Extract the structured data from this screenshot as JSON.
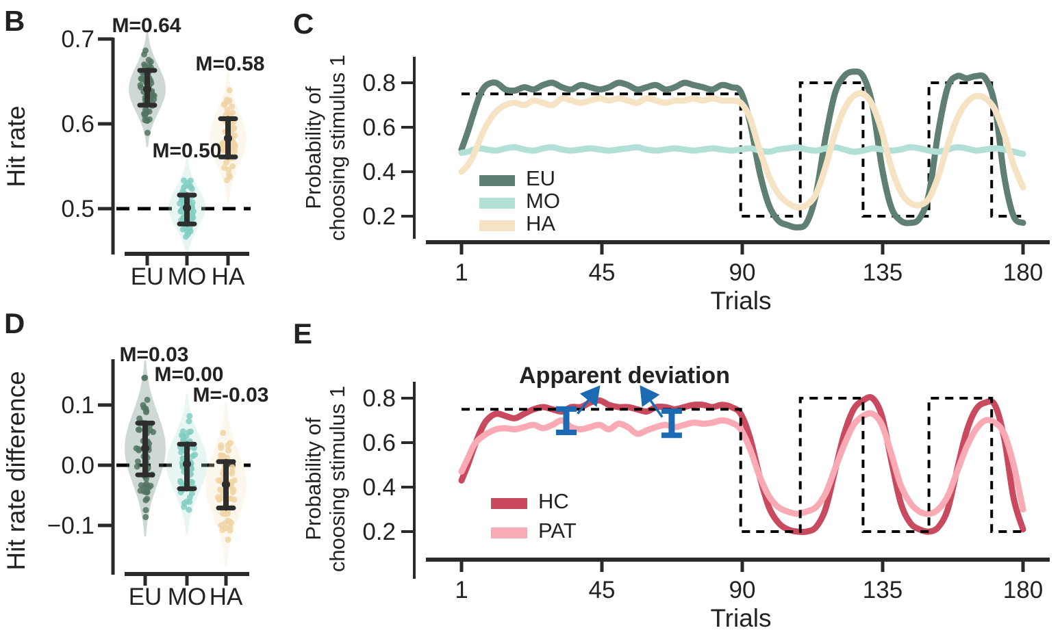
{
  "figure": {
    "background": "#ffffff",
    "accent_blue": "#1b6ab3",
    "errorbar_color": "#2e2e2e"
  },
  "chart_data": [
    {
      "panel_label": "B",
      "type": "violin",
      "ylabel": "Hit rate",
      "ytick_labels": [
        "0.7",
        "0.6",
        "0.5"
      ],
      "yticks": [
        0.7,
        0.6,
        0.5
      ],
      "ylim": [
        0.44,
        0.705
      ],
      "dashed_line_y": 0.5,
      "categories": [
        "EU",
        "MO",
        "HA"
      ],
      "groups": [
        {
          "name": "EU",
          "mean": 0.641,
          "mean_label": "M=0.64",
          "ci": [
            0.622,
            0.663
          ],
          "sd": 0.021,
          "range": [
            0.585,
            0.69
          ],
          "n": 60,
          "color": "#5e7f72",
          "dot_color": "#527663"
        },
        {
          "name": "MO",
          "mean": 0.501,
          "mean_label": "M=0.50",
          "ci": [
            0.482,
            0.516
          ],
          "sd": 0.018,
          "range": [
            0.452,
            0.548
          ],
          "n": 60,
          "color": "#b2e0d7",
          "dot_color": "#82cec1"
        },
        {
          "name": "HA",
          "mean": 0.583,
          "mean_label": "M=0.58",
          "ci": [
            0.561,
            0.606
          ],
          "sd": 0.024,
          "range": [
            0.515,
            0.64
          ],
          "n": 60,
          "color": "#f6e3c4",
          "dot_color": "#f0d3a4"
        }
      ]
    },
    {
      "panel_label": "C",
      "type": "line",
      "xlabel": "Trials",
      "ylabel_line1": "Probability of",
      "ylabel_line2": "choosing stimulus 1",
      "xtick_labels": [
        "1",
        "45",
        "90",
        "135",
        "180"
      ],
      "xticks": [
        1,
        45,
        90,
        135,
        180
      ],
      "ytick_labels": [
        "0.8",
        "0.6",
        "0.4",
        "0.2"
      ],
      "yticks": [
        0.8,
        0.6,
        0.4,
        0.2
      ],
      "xlim": [
        1,
        180
      ],
      "ylim": [
        0.1,
        0.92
      ],
      "schedule": {
        "name": "true-reward-probability",
        "style": "dashed",
        "color": "#000000",
        "points": [
          [
            1,
            0.75
          ],
          [
            90,
            0.75
          ],
          [
            90,
            0.2
          ],
          [
            109,
            0.2
          ],
          [
            109,
            0.8
          ],
          [
            129,
            0.8
          ],
          [
            129,
            0.2
          ],
          [
            150,
            0.2
          ],
          [
            150,
            0.8
          ],
          [
            170,
            0.8
          ],
          [
            170,
            0.2
          ],
          [
            180,
            0.2
          ]
        ]
      },
      "series": [
        {
          "name": "EU",
          "color": "#5e7f72",
          "x": [
            1,
            3,
            5,
            7,
            9,
            12,
            15,
            18,
            21,
            24,
            27,
            30,
            33,
            36,
            39,
            42,
            45,
            48,
            51,
            54,
            57,
            60,
            63,
            66,
            69,
            72,
            75,
            78,
            81,
            84,
            87,
            90,
            93,
            96,
            99,
            102,
            105,
            108,
            111,
            114,
            117,
            120,
            123,
            126,
            129,
            132,
            135,
            138,
            141,
            144,
            147,
            150,
            153,
            156,
            159,
            162,
            165,
            168,
            171,
            174,
            177,
            180
          ],
          "y": [
            0.5,
            0.58,
            0.67,
            0.75,
            0.79,
            0.8,
            0.77,
            0.765,
            0.78,
            0.77,
            0.79,
            0.8,
            0.78,
            0.77,
            0.79,
            0.78,
            0.77,
            0.78,
            0.8,
            0.79,
            0.77,
            0.78,
            0.79,
            0.77,
            0.78,
            0.8,
            0.79,
            0.78,
            0.77,
            0.79,
            0.78,
            0.76,
            0.62,
            0.4,
            0.25,
            0.18,
            0.16,
            0.15,
            0.17,
            0.3,
            0.55,
            0.75,
            0.83,
            0.85,
            0.83,
            0.7,
            0.42,
            0.24,
            0.18,
            0.17,
            0.19,
            0.3,
            0.58,
            0.78,
            0.83,
            0.82,
            0.83,
            0.82,
            0.7,
            0.38,
            0.2,
            0.17
          ]
        },
        {
          "name": "MO",
          "color": "#b2e0d7",
          "x": [
            1,
            3,
            5,
            7,
            9,
            12,
            15,
            18,
            21,
            24,
            27,
            30,
            33,
            36,
            39,
            42,
            45,
            48,
            51,
            54,
            57,
            60,
            63,
            66,
            69,
            72,
            75,
            78,
            81,
            84,
            87,
            90,
            93,
            96,
            99,
            102,
            105,
            108,
            111,
            114,
            117,
            120,
            123,
            126,
            129,
            132,
            135,
            138,
            141,
            144,
            147,
            150,
            153,
            156,
            159,
            162,
            165,
            168,
            171,
            174,
            177,
            180
          ],
          "y": [
            0.485,
            0.49,
            0.5,
            0.505,
            0.5,
            0.495,
            0.505,
            0.51,
            0.5,
            0.495,
            0.505,
            0.51,
            0.5,
            0.495,
            0.5,
            0.505,
            0.5,
            0.495,
            0.5,
            0.505,
            0.51,
            0.5,
            0.495,
            0.5,
            0.505,
            0.5,
            0.495,
            0.5,
            0.505,
            0.5,
            0.495,
            0.5,
            0.505,
            0.495,
            0.49,
            0.5,
            0.505,
            0.51,
            0.5,
            0.495,
            0.505,
            0.51,
            0.5,
            0.49,
            0.495,
            0.505,
            0.5,
            0.495,
            0.5,
            0.51,
            0.505,
            0.495,
            0.49,
            0.5,
            0.51,
            0.505,
            0.495,
            0.5,
            0.505,
            0.5,
            0.49,
            0.48
          ]
        },
        {
          "name": "HA",
          "color": "#f6e3c4",
          "x": [
            1,
            3,
            5,
            7,
            9,
            12,
            15,
            18,
            21,
            24,
            27,
            30,
            33,
            36,
            39,
            42,
            45,
            48,
            51,
            54,
            57,
            60,
            63,
            66,
            69,
            72,
            75,
            78,
            81,
            84,
            87,
            90,
            93,
            96,
            99,
            102,
            105,
            108,
            111,
            114,
            117,
            120,
            123,
            126,
            129,
            132,
            135,
            138,
            141,
            144,
            147,
            150,
            153,
            156,
            159,
            162,
            165,
            168,
            171,
            174,
            177,
            180
          ],
          "y": [
            0.4,
            0.43,
            0.48,
            0.55,
            0.61,
            0.67,
            0.7,
            0.71,
            0.7,
            0.72,
            0.71,
            0.7,
            0.73,
            0.72,
            0.71,
            0.72,
            0.73,
            0.72,
            0.73,
            0.72,
            0.71,
            0.73,
            0.72,
            0.71,
            0.72,
            0.72,
            0.73,
            0.72,
            0.73,
            0.72,
            0.72,
            0.71,
            0.64,
            0.5,
            0.38,
            0.3,
            0.26,
            0.24,
            0.25,
            0.3,
            0.42,
            0.57,
            0.68,
            0.74,
            0.75,
            0.7,
            0.58,
            0.42,
            0.31,
            0.26,
            0.25,
            0.28,
            0.38,
            0.52,
            0.64,
            0.71,
            0.74,
            0.73,
            0.68,
            0.57,
            0.43,
            0.33
          ]
        }
      ]
    },
    {
      "panel_label": "D",
      "type": "violin",
      "ylabel": "Hit rate difference",
      "ytick_labels": [
        "0.1",
        "0.0",
        "−0.1"
      ],
      "yticks": [
        0.1,
        0.0,
        -0.1
      ],
      "ylim": [
        -0.17,
        0.175
      ],
      "dashed_line_y": 0.0,
      "categories": [
        "EU",
        "MO",
        "HA"
      ],
      "groups": [
        {
          "name": "EU",
          "mean": 0.028,
          "mean_label": "M=0.03",
          "ci": [
            -0.016,
            0.07
          ],
          "sd": 0.045,
          "range": [
            -0.105,
            0.148
          ],
          "n": 60,
          "color": "#5e7f72",
          "dot_color": "#527663"
        },
        {
          "name": "MO",
          "mean": 0.002,
          "mean_label": "M=0.00",
          "ci": [
            -0.039,
            0.035
          ],
          "sd": 0.036,
          "range": [
            -0.088,
            0.092
          ],
          "n": 60,
          "color": "#b2e0d7",
          "dot_color": "#82cec1"
        },
        {
          "name": "HA",
          "mean": -0.032,
          "mean_label": "M=-0.03",
          "ci": [
            -0.071,
            0.006
          ],
          "sd": 0.042,
          "range": [
            -0.148,
            0.092
          ],
          "n": 60,
          "color": "#f6e3c4",
          "dot_color": "#f0d3a4"
        }
      ]
    },
    {
      "panel_label": "E",
      "type": "line",
      "xlabel": "Trials",
      "ylabel_line1": "Probability of",
      "ylabel_line2": "choosing stimulus 1",
      "xtick_labels": [
        "1",
        "45",
        "90",
        "135",
        "180"
      ],
      "xticks": [
        1,
        45,
        90,
        135,
        180
      ],
      "ytick_labels": [
        "0.8",
        "0.6",
        "0.4",
        "0.2"
      ],
      "yticks": [
        0.8,
        0.6,
        0.4,
        0.2
      ],
      "xlim": [
        1,
        180
      ],
      "ylim": [
        0.1,
        0.92
      ],
      "schedule": {
        "name": "true-reward-probability",
        "style": "dashed",
        "color": "#000000",
        "points": [
          [
            1,
            0.75
          ],
          [
            90,
            0.75
          ],
          [
            90,
            0.2
          ],
          [
            109,
            0.2
          ],
          [
            109,
            0.8
          ],
          [
            129,
            0.8
          ],
          [
            129,
            0.2
          ],
          [
            150,
            0.2
          ],
          [
            150,
            0.8
          ],
          [
            170,
            0.8
          ],
          [
            170,
            0.2
          ],
          [
            180,
            0.2
          ]
        ]
      },
      "series": [
        {
          "name": "HC",
          "color": "#c9495f",
          "x": [
            1,
            3,
            5,
            7,
            9,
            12,
            15,
            18,
            21,
            24,
            27,
            30,
            33,
            36,
            39,
            42,
            45,
            48,
            51,
            54,
            57,
            60,
            63,
            66,
            69,
            72,
            75,
            78,
            81,
            84,
            87,
            90,
            93,
            96,
            99,
            102,
            105,
            108,
            111,
            114,
            117,
            120,
            123,
            126,
            129,
            132,
            135,
            138,
            141,
            144,
            147,
            150,
            153,
            156,
            159,
            162,
            165,
            168,
            171,
            174,
            177,
            180
          ],
          "y": [
            0.43,
            0.5,
            0.58,
            0.65,
            0.7,
            0.73,
            0.72,
            0.71,
            0.73,
            0.75,
            0.76,
            0.75,
            0.74,
            0.76,
            0.76,
            0.78,
            0.79,
            0.77,
            0.76,
            0.76,
            0.75,
            0.74,
            0.76,
            0.76,
            0.75,
            0.76,
            0.77,
            0.77,
            0.76,
            0.77,
            0.76,
            0.73,
            0.62,
            0.45,
            0.31,
            0.24,
            0.21,
            0.2,
            0.2,
            0.22,
            0.3,
            0.47,
            0.64,
            0.75,
            0.79,
            0.8,
            0.72,
            0.52,
            0.33,
            0.24,
            0.21,
            0.2,
            0.22,
            0.3,
            0.48,
            0.65,
            0.75,
            0.78,
            0.77,
            0.62,
            0.35,
            0.21
          ]
        },
        {
          "name": "PAT",
          "color": "#f9aab4",
          "x": [
            1,
            3,
            5,
            7,
            9,
            12,
            15,
            18,
            21,
            24,
            27,
            30,
            33,
            36,
            39,
            42,
            45,
            48,
            51,
            54,
            57,
            60,
            63,
            66,
            69,
            72,
            75,
            78,
            81,
            84,
            87,
            90,
            93,
            96,
            99,
            102,
            105,
            108,
            111,
            114,
            117,
            120,
            123,
            126,
            129,
            132,
            135,
            138,
            141,
            144,
            147,
            150,
            153,
            156,
            159,
            162,
            165,
            168,
            171,
            174,
            177,
            180
          ],
          "y": [
            0.47,
            0.53,
            0.59,
            0.62,
            0.64,
            0.66,
            0.665,
            0.66,
            0.67,
            0.68,
            0.665,
            0.68,
            0.7,
            0.67,
            0.66,
            0.67,
            0.68,
            0.66,
            0.685,
            0.67,
            0.64,
            0.655,
            0.67,
            0.68,
            0.67,
            0.68,
            0.69,
            0.685,
            0.69,
            0.7,
            0.69,
            0.66,
            0.57,
            0.45,
            0.36,
            0.31,
            0.29,
            0.28,
            0.29,
            0.31,
            0.37,
            0.48,
            0.59,
            0.68,
            0.72,
            0.73,
            0.68,
            0.55,
            0.41,
            0.33,
            0.29,
            0.28,
            0.3,
            0.36,
            0.47,
            0.58,
            0.66,
            0.7,
            0.69,
            0.64,
            0.5,
            0.3
          ]
        }
      ],
      "annotation": {
        "text": "Apparent deviation",
        "color": "#1b6ab3",
        "markers": [
          {
            "x": 34.4,
            "v_top": 0.751,
            "v_bottom": 0.646
          },
          {
            "x": 68.0,
            "v_top": 0.742,
            "v_bottom": 0.633
          }
        ],
        "arrows": [
          {
            "x1": 38.0,
            "y1": 0.73,
            "x2": 44.5,
            "y2": 0.845
          },
          {
            "x1": 65.0,
            "y1": 0.715,
            "x2": 58.5,
            "y2": 0.845
          }
        ]
      }
    }
  ]
}
